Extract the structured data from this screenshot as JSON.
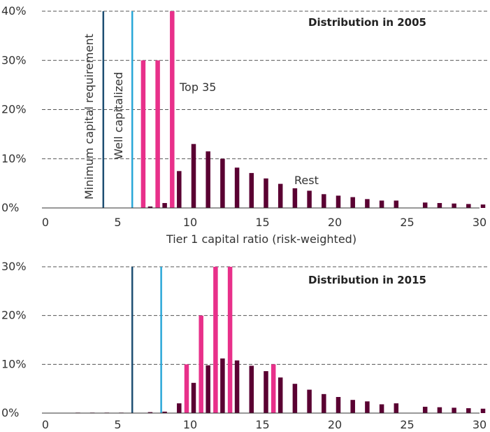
{
  "colors": {
    "top35": "#e8308a",
    "rest": "#5a0032",
    "minimum_line": "#1e4f73",
    "well_line": "#29a7d8"
  },
  "chart_data": [
    {
      "type": "bar",
      "title": "Distribution in 2005",
      "xlabel": "Tier 1 capital ratio (risk-weighted)",
      "ylabel": "",
      "xlim": [
        0,
        30
      ],
      "ylim": [
        0,
        40
      ],
      "x_ticks": [
        0,
        5,
        10,
        15,
        20,
        25,
        30
      ],
      "y_ticks": [
        0,
        10,
        20,
        30,
        40
      ],
      "y_tick_labels": [
        "0%",
        "10%",
        "20%",
        "30%",
        "40%"
      ],
      "grid": true,
      "series": [
        {
          "name": "Top 35",
          "key": "top35",
          "x": [
            7,
            8,
            9
          ],
          "values": [
            30,
            30,
            40
          ]
        },
        {
          "name": "Rest",
          "key": "rest",
          "x": [
            7,
            8,
            9,
            10,
            11,
            12,
            13,
            14,
            15,
            16,
            17,
            18,
            19,
            20,
            21,
            22,
            23,
            24,
            26,
            27,
            28,
            29,
            30
          ],
          "values": [
            0.3,
            1,
            7.5,
            13,
            11.5,
            10,
            8.2,
            7.1,
            6,
            4.9,
            4,
            3.5,
            2.8,
            2.5,
            2.2,
            1.8,
            1.5,
            1.5,
            1.1,
            1,
            0.9,
            0.8,
            0.7
          ]
        }
      ],
      "reference_lines": [
        {
          "x": 4,
          "label": "Minimum capital requirement",
          "key": "minimum_line"
        },
        {
          "x": 6,
          "label": "Well capitalized",
          "key": "well_line"
        }
      ]
    },
    {
      "type": "bar",
      "title": "Distribution in 2015",
      "xlabel": "",
      "ylabel": "",
      "xlim": [
        0,
        30
      ],
      "ylim": [
        0,
        30
      ],
      "x_ticks": [
        0,
        5,
        10,
        15,
        20,
        25,
        30
      ],
      "y_ticks": [
        0,
        10,
        20,
        30
      ],
      "y_tick_labels": [
        "0%",
        "10%",
        "20%",
        "30%"
      ],
      "grid": true,
      "series": [
        {
          "name": "Top 35",
          "key": "top35",
          "x": [
            10,
            11,
            12,
            13,
            16
          ],
          "values": [
            10,
            20,
            30,
            30,
            10
          ]
        },
        {
          "name": "Rest",
          "key": "rest",
          "x": [
            2,
            3,
            4,
            5,
            7,
            8,
            9,
            10,
            11,
            12,
            13,
            14,
            15,
            16,
            17,
            18,
            19,
            20,
            21,
            22,
            23,
            24,
            26,
            27,
            28,
            29,
            30
          ],
          "values": [
            0.1,
            0.1,
            0.1,
            0.1,
            0.2,
            0.3,
            2,
            6.2,
            9.8,
            11.2,
            10.8,
            9.7,
            8.6,
            7.3,
            6,
            4.8,
            3.9,
            3.3,
            2.7,
            2.4,
            1.8,
            2,
            1.3,
            1.2,
            1.1,
            1,
            0.9
          ]
        }
      ],
      "reference_lines": [
        {
          "x": 6,
          "label": "",
          "key": "minimum_line"
        },
        {
          "x": 8,
          "label": "",
          "key": "well_line"
        }
      ]
    }
  ]
}
